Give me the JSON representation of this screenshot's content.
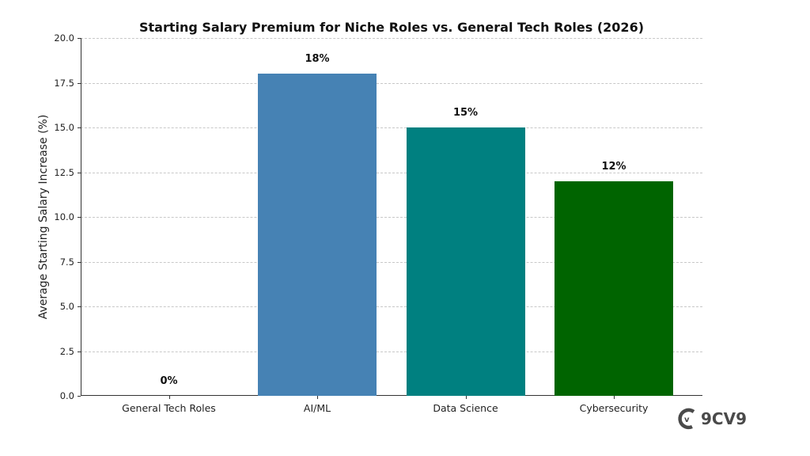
{
  "chart_data": {
    "type": "bar",
    "title": "Starting Salary Premium for Niche Roles vs. General Tech Roles (2026)",
    "xlabel": "",
    "ylabel": "Average Starting Salary Increase (%)",
    "categories": [
      "General Tech Roles",
      "AI/ML",
      "Data Science",
      "Cybersecurity"
    ],
    "values": [
      0,
      18,
      15,
      12
    ],
    "data_labels": [
      "0%",
      "18%",
      "15%",
      "12%"
    ],
    "colors": [
      "#4682b4",
      "#4682b4",
      "#008080",
      "#006400"
    ],
    "ylim": [
      0,
      20
    ],
    "yticks": [
      "0.0",
      "2.5",
      "5.0",
      "7.5",
      "10.0",
      "12.5",
      "15.0",
      "17.5",
      "20.0"
    ],
    "grid": "y-dashed",
    "legend": null
  },
  "watermark": {
    "text": "9CV9",
    "icon": "9cv9-logo-icon"
  }
}
